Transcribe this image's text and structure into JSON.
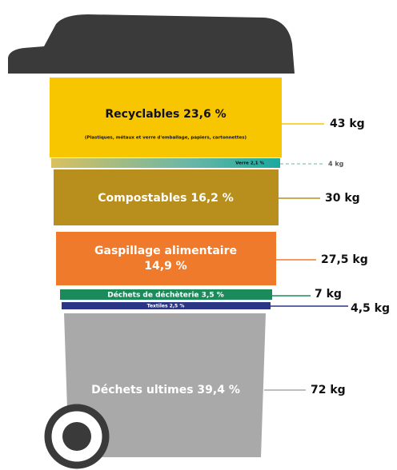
{
  "segments": [
    {
      "label": "Recyclables 23,6 %",
      "note": "(Plastiques, métaux et verre d'emballage, papiers, cartonnettes)",
      "weight": "43 kg"
    },
    {
      "label": "Verre 2,1 %",
      "weight": "4 kg"
    },
    {
      "label": "Compostables 16,2 %",
      "weight": "30 kg"
    },
    {
      "label": "Gaspillage alimentaire",
      "label_line2": "14,9 %",
      "weight": "27,5 kg"
    },
    {
      "label": "Déchets de déchèterie 3,5 %",
      "weight": "7 kg"
    },
    {
      "label": "Textiles 2,5 %",
      "weight": "4,5 kg"
    },
    {
      "label": "Déchets ultimes 39,4 %",
      "weight": "72 kg"
    }
  ]
}
